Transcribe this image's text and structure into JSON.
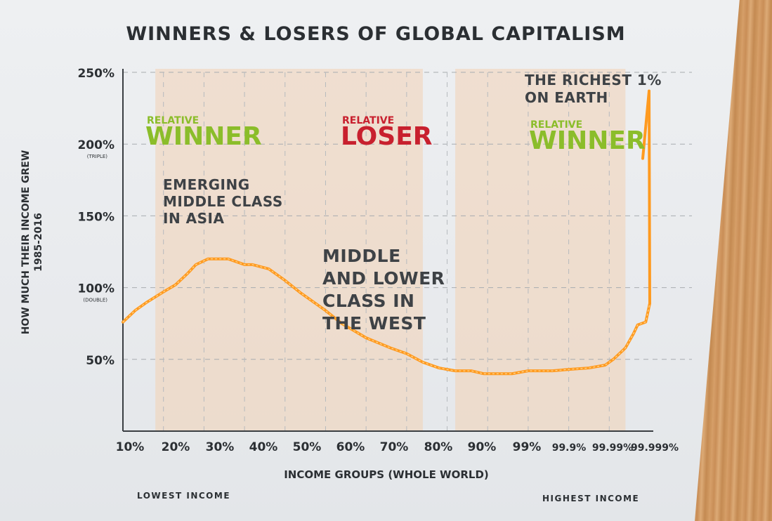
{
  "title": "WINNERS & LOSERS OF GLOBAL CAPITALISM",
  "chart_data": {
    "type": "line",
    "title": "WINNERS & LOSERS OF GLOBAL CAPITALISM",
    "ylabel": "HOW MUCH THEIR INCOME GREW",
    "ylabel_sub": "1985-2016",
    "xlabel": "INCOME GROUPS (WHOLE WORLD)",
    "ylim": [
      0,
      250
    ],
    "y_ticks": [
      {
        "value": 50,
        "label": "50%",
        "sub": ""
      },
      {
        "value": 100,
        "label": "100%",
        "sub": "(DOUBLE)"
      },
      {
        "value": 150,
        "label": "150%",
        "sub": ""
      },
      {
        "value": 200,
        "label": "200%",
        "sub": "(TRIPLE)"
      },
      {
        "value": 250,
        "label": "250%",
        "sub": ""
      }
    ],
    "categories": [
      "10%",
      "20%",
      "30%",
      "40%",
      "50%",
      "60%",
      "70%",
      "80%",
      "90%",
      "99%",
      "99.9%",
      "99.99%",
      "99.999%"
    ],
    "grid": true,
    "line_color": "#ff9a1f",
    "series": [
      {
        "x": [
          0,
          0.3,
          0.6,
          1.0,
          1.3,
          1.6,
          1.8,
          2.1,
          2.4,
          2.6,
          2.8,
          3.0,
          3.2,
          3.6,
          4.0,
          4.4,
          5.0,
          5.4,
          6.0,
          6.6,
          7.0,
          7.4,
          7.8,
          8.2,
          8.6,
          8.9,
          9.2,
          9.6,
          10.0,
          10.2,
          10.6,
          11.0,
          11.5,
          11.9,
          12.1,
          12.4,
          12.6,
          12.7,
          12.9,
          13.0
        ],
        "values": [
          76,
          84,
          90,
          97,
          102,
          110,
          116,
          120,
          120,
          120,
          118,
          116,
          116,
          113,
          105,
          96,
          84,
          75,
          65,
          58,
          54,
          48,
          44,
          42,
          42,
          40,
          40,
          40,
          42,
          42,
          42,
          43,
          44,
          46,
          50,
          58,
          68,
          74,
          76,
          89
        ]
      }
    ],
    "regions": [
      {
        "x_from": 0.8,
        "x_to": 4.0,
        "label": "RELATIVE",
        "verdict": "WINNER",
        "color": "#8bbd2a"
      },
      {
        "x_from": 4.0,
        "x_to": 7.4,
        "label": "RELATIVE",
        "verdict": "LOSER",
        "color": "#c8202e"
      },
      {
        "x_from": 8.2,
        "x_to": 12.4,
        "label": "RELATIVE",
        "verdict": "WINNER",
        "color": "#8bbd2a"
      }
    ],
    "annotations": {
      "asia": "EMERGING MIDDLE CLASS IN ASIA",
      "west": "MIDDLE AND LOWER CLASS IN THE WEST",
      "richest": "THE RICHEST 1% ON EARTH"
    }
  },
  "winner_left": {
    "small": "RELATIVE",
    "big": "WINNER"
  },
  "loser": {
    "small": "RELATIVE",
    "big": "LOSER"
  },
  "winner_right": {
    "small": "RELATIVE",
    "big": "WINNER"
  },
  "note_asia": [
    "EMERGING",
    "MIDDLE CLASS",
    "IN ASIA"
  ],
  "note_west": [
    "MIDDLE",
    "AND LOWER",
    "CLASS IN",
    "THE WEST"
  ],
  "note_rich": [
    "THE RICHEST 1%",
    "ON EARTH"
  ],
  "y_axis_title": [
    "HOW MUCH THEIR INCOME GREW",
    "1985-2016"
  ],
  "x_axis_title": "INCOME GROUPS (WHOLE WORLD)",
  "low_label": "LOWEST INCOME",
  "high_label": "HIGHEST INCOME"
}
